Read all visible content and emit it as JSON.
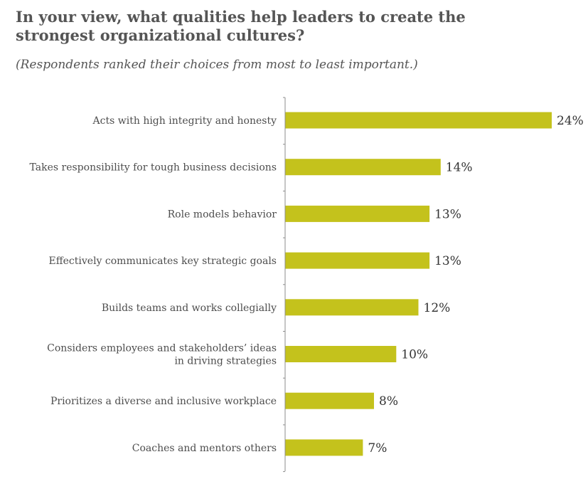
{
  "header": {
    "title": "In your view, what qualities help leaders to create the strongest organizational cultures?",
    "subtitle": "(Respondents ranked their choices from most to least important.)"
  },
  "colors": {
    "bar": "#c4c21c",
    "axis": "#8c8c8c"
  },
  "chart_data": {
    "type": "bar",
    "orientation": "horizontal",
    "title": "In your view, what qualities help leaders to create the strongest organizational cultures?",
    "subtitle": "(Respondents ranked their choices from most to least important.)",
    "categories": [
      "Acts with high integrity and honesty",
      "Takes responsibility for tough business decisions",
      "Role models behavior",
      "Effectively communicates key strategic goals",
      "Builds teams and works collegially",
      "Considers employees and stakeholders’ ideas in driving strategies",
      "Prioritizes a diverse and inclusive workplace",
      "Coaches and mentors others"
    ],
    "category_lines": [
      [
        "Acts with high integrity and honesty"
      ],
      [
        "Takes responsibility for tough business decisions"
      ],
      [
        "Role models behavior"
      ],
      [
        "Effectively communicates key strategic goals"
      ],
      [
        "Builds teams and works collegially"
      ],
      [
        "Considers employees and stakeholders’ ideas",
        "in driving strategies"
      ],
      [
        "Prioritizes a diverse and inclusive workplace"
      ],
      [
        "Coaches and mentors others"
      ]
    ],
    "values": [
      24,
      14,
      13,
      13,
      12,
      10,
      8,
      7
    ],
    "value_labels": [
      "24%",
      "14%",
      "13%",
      "13%",
      "12%",
      "10%",
      "8%",
      "7%"
    ],
    "unit": "%",
    "xlim": [
      0,
      24
    ],
    "grid": false,
    "legend": "none"
  }
}
